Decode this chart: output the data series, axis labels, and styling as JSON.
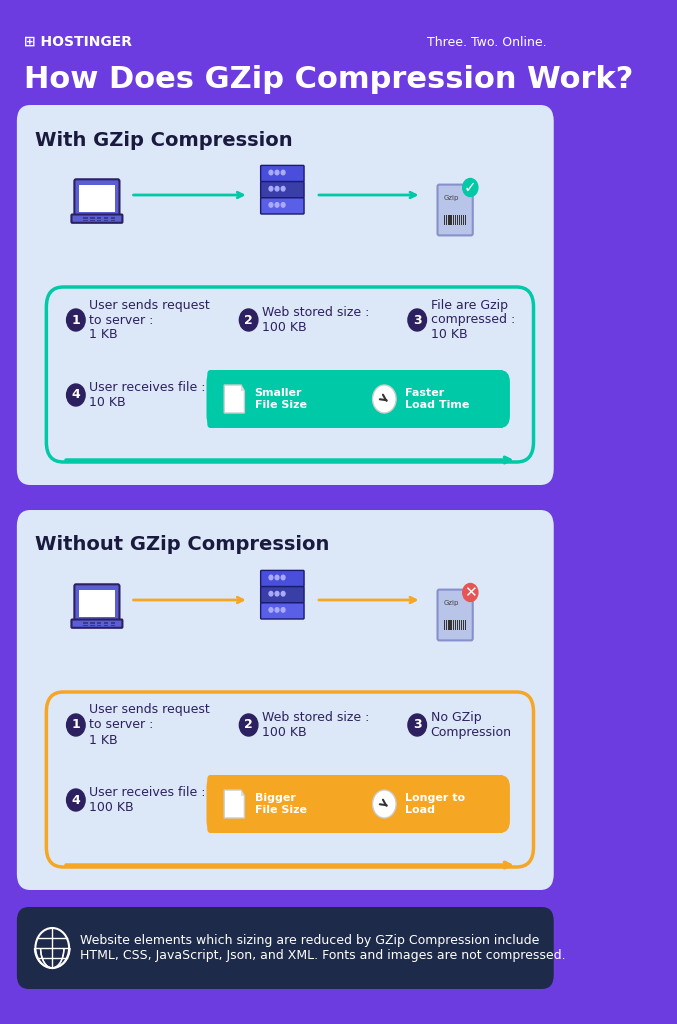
{
  "bg_color": "#6c3ce1",
  "card_bg": "#dce8f7",
  "dark_card_bg": "#1e2a4a",
  "title": "How Does GZip Compression Work?",
  "title_color": "#ffffff",
  "title_fontsize": 22,
  "header_text": "HOSTINGER",
  "tagline": "Three. Two. Online.",
  "with_title": "With GZip Compression",
  "without_title": "Without GZip Compression",
  "with_border_color": "#00c9a7",
  "without_border_color": "#f5a623",
  "with_highlight_color": "#00c9a7",
  "without_highlight_color": "#f5a623",
  "steps_with": [
    {
      "num": "1",
      "text": "User sends request\nto server :\n1 KB"
    },
    {
      "num": "2",
      "text": "Web stored size :\n100 KB"
    },
    {
      "num": "3",
      "text": "File are Gzip\ncompressed :\n10 KB"
    },
    {
      "num": "4",
      "text": "User receives file :\n10 KB"
    }
  ],
  "steps_without": [
    {
      "num": "1",
      "text": "User sends request\nto server :\n1 KB"
    },
    {
      "num": "2",
      "text": "Web stored size :\n100 KB"
    },
    {
      "num": "3",
      "text": "No GZip\nCompression"
    },
    {
      "num": "4",
      "text": "User receives file :\n100 KB"
    }
  ],
  "with_badge1": "Smaller\nFile Size",
  "with_badge2": "Faster\nLoad Time",
  "without_badge1": "Bigger\nFile Size",
  "without_badge2": "Longer to\nLoad",
  "footer_text": "Website elements which sizing are reduced by GZip Compression include\nHTML, CSS, JavaScript, Json, and XML. Fonts and images are not compressed.",
  "step_circle_color": "#2d2060",
  "step_text_color": "#2d2060",
  "card_title_color": "#1a1a3e"
}
